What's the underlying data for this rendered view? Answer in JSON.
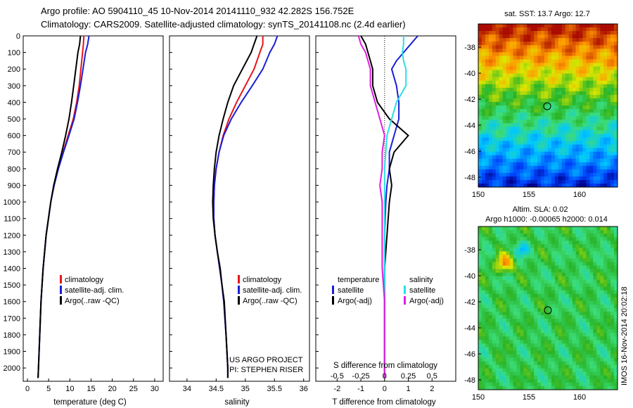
{
  "header": {
    "line1": "Argo profile: AO 5904110_45 10-Nov-2014 20141110_932 42.282S 156.752E",
    "line2": "Climatology: CARS2009. Satellite-adjusted climatology: synTS_20141108.nc (2.4d earlier)"
  },
  "colors": {
    "climatology": "#e8131a",
    "satellite": "#1a1fd6",
    "argo": "#000000",
    "s_satellite": "#28dfe6",
    "s_argo": "#e01ee0"
  },
  "chart_data": [
    {
      "type": "line",
      "id": "temperature",
      "xlabel": "temperature (deg C)",
      "ylabel": "",
      "xlim": [
        -1,
        32
      ],
      "ylim": [
        2080,
        0
      ],
      "xticks": [
        0,
        5,
        10,
        15,
        20,
        25,
        30
      ],
      "yticks": [
        0,
        100,
        200,
        300,
        400,
        500,
        600,
        700,
        800,
        900,
        1000,
        1100,
        1200,
        1300,
        1400,
        1500,
        1600,
        1700,
        1800,
        1900,
        2000
      ],
      "y": [
        0,
        50,
        100,
        200,
        300,
        400,
        500,
        600,
        700,
        800,
        900,
        1000,
        1200,
        1400,
        1600,
        1800,
        2000,
        2060
      ],
      "series": [
        {
          "name": "climatology",
          "values": [
            13.3,
            13.2,
            13.0,
            12.6,
            12.2,
            11.6,
            10.8,
            9.6,
            8.4,
            7.2,
            6.2,
            5.5,
            4.4,
            3.7,
            3.2,
            2.9,
            2.6,
            2.5
          ]
        },
        {
          "name": "satellite-adj. clim.",
          "values": [
            14.5,
            14.2,
            13.7,
            13.1,
            12.5,
            11.8,
            11.0,
            9.8,
            8.5,
            7.3,
            6.3,
            5.5,
            4.4,
            3.7,
            3.2,
            2.9,
            2.6,
            2.5
          ]
        },
        {
          "name": "Argo(..raw -QC)",
          "values": [
            12.5,
            12.3,
            11.9,
            11.4,
            10.9,
            10.4,
            9.8,
            9.0,
            8.1,
            7.1,
            6.2,
            5.5,
            4.4,
            3.7,
            3.2,
            2.9,
            2.6,
            2.5
          ]
        }
      ],
      "legend": [
        "climatology",
        "satellite-adj. clim.",
        "Argo(..raw -QC)"
      ]
    },
    {
      "type": "line",
      "id": "salinity",
      "xlabel": "salinity",
      "xlim": [
        33.7,
        36.1
      ],
      "ylim": [
        2080,
        0
      ],
      "xticks": [
        34,
        34.5,
        35,
        35.5,
        36
      ],
      "y": [
        0,
        50,
        100,
        200,
        300,
        400,
        500,
        600,
        700,
        800,
        900,
        1000,
        1100,
        1200,
        1300,
        1400,
        1500,
        1600,
        1800,
        2000,
        2060
      ],
      "series": [
        {
          "name": "climatology",
          "values": [
            35.3,
            35.3,
            35.25,
            35.15,
            35.0,
            34.85,
            34.72,
            34.62,
            34.55,
            34.5,
            34.47,
            34.46,
            34.46,
            34.48,
            34.52,
            34.56,
            34.6,
            34.63,
            34.67,
            34.7,
            34.7
          ]
        },
        {
          "name": "satellite-adj. clim.",
          "values": [
            35.55,
            35.5,
            35.42,
            35.3,
            35.12,
            34.93,
            34.76,
            34.63,
            34.55,
            34.5,
            34.47,
            34.46,
            34.46,
            34.48,
            34.52,
            34.56,
            34.6,
            34.63,
            34.67,
            34.7,
            34.7
          ]
        },
        {
          "name": "Argo(..raw -QC)",
          "values": [
            35.2,
            35.15,
            35.1,
            34.95,
            34.8,
            34.7,
            34.62,
            34.55,
            34.5,
            34.47,
            34.45,
            34.44,
            34.45,
            34.48,
            34.52,
            34.57,
            34.6,
            34.64,
            34.67,
            34.7,
            34.7
          ]
        }
      ],
      "legend": [
        "climatology",
        "satellite-adj. clim.",
        "Argo(..raw -QC)"
      ],
      "annotations": [
        "US ARGO PROJECT",
        "PI: STEPHEN RISER"
      ]
    },
    {
      "type": "line",
      "id": "differences",
      "xlabel": "T difference from climatology",
      "xlabel_top": "S difference from climatology",
      "xlim": [
        -2.9,
        3.0
      ],
      "ylim": [
        2080,
        0
      ],
      "xticks": [
        -2,
        -1,
        0,
        1,
        2
      ],
      "sticks": [
        "-0.5",
        "-0.25",
        "0",
        "0.25",
        "0.5"
      ],
      "y": [
        0,
        50,
        100,
        150,
        200,
        300,
        400,
        500,
        600,
        700,
        800,
        900,
        1000,
        1200,
        1400,
        1600,
        1800,
        2000,
        2060
      ],
      "series": [
        {
          "name": "temperature satellite",
          "values": [
            1.4,
            1.1,
            0.8,
            0.5,
            0.3,
            0.5,
            0.6,
            0.6,
            0.4,
            0.2,
            0.2,
            0.1,
            0.05,
            0,
            0,
            0,
            0,
            0,
            0
          ]
        },
        {
          "name": "temperature Argo(-adj)",
          "values": [
            -1.0,
            -0.8,
            -0.7,
            -0.6,
            -0.5,
            -0.5,
            -0.3,
            0.2,
            1.0,
            0.4,
            0.2,
            0.3,
            0.2,
            0.1,
            0,
            0,
            0,
            0,
            0
          ]
        },
        {
          "name": "salinity satellite",
          "values": [
            0.8,
            0.8,
            0.75,
            0.8,
            0.9,
            0.9,
            0.5,
            0.3,
            0.1,
            0.05,
            0,
            0,
            0,
            0,
            0,
            0,
            0,
            0,
            0
          ]
        },
        {
          "name": "salinity Argo(-adj)",
          "values": [
            -1.1,
            -1.0,
            -0.8,
            -0.7,
            -0.6,
            -0.6,
            -0.4,
            -0.2,
            0,
            -0.1,
            -0.1,
            -0.2,
            -0.1,
            -0.1,
            -0.1,
            0,
            0,
            0,
            0
          ]
        }
      ],
      "legend_headers": [
        "temperature",
        "salinity"
      ],
      "legend": [
        "satellite",
        "Argo(-adj)",
        "satellite",
        "Argo(-adj)"
      ]
    }
  ],
  "maps": {
    "sst": {
      "title": "sat. SST: 13.7 Argo: 12.7",
      "xticks": [
        "150",
        "155",
        "160"
      ],
      "yticks": [
        "-38",
        "-40",
        "-42",
        "-44",
        "-46",
        "-48"
      ]
    },
    "sla": {
      "title1": "Altim. SLA: 0.02",
      "title2": "Argo h1000: -0.00065 h2000: 0.014",
      "xticks": [
        "150",
        "155",
        "160"
      ],
      "yticks": [
        "-38",
        "-40",
        "-42",
        "-44",
        "-46",
        "-48"
      ]
    }
  },
  "footer": {
    "stamp": "IMOS 16-Nov-2014 20:02:18"
  }
}
